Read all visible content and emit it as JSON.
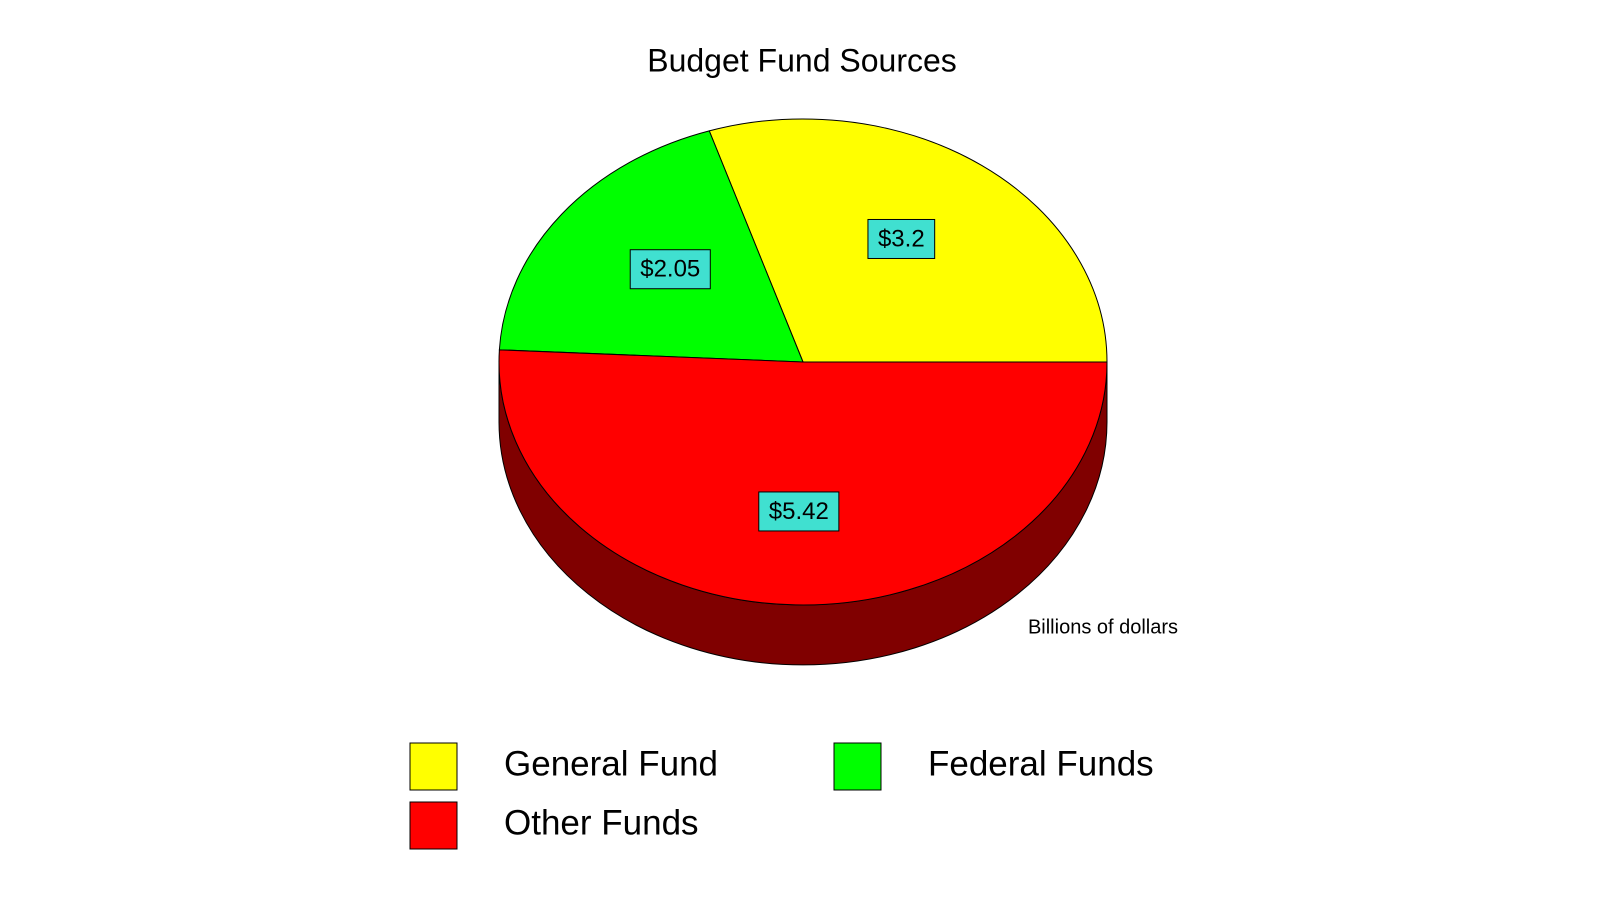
{
  "chart_data": {
    "type": "pie",
    "title": "Budget Fund Sources",
    "annotation": "Billions of dollars",
    "categories": [
      "General Fund",
      "Federal Funds",
      "Other Funds"
    ],
    "values": [
      3.2,
      2.05,
      5.42
    ],
    "value_labels": [
      "$3.2",
      "$2.05",
      "$5.42"
    ],
    "colors": [
      "#ffff00",
      "#00ff00",
      "#ff0000"
    ],
    "side_colors": [
      "#808000",
      "#008000",
      "#800000"
    ],
    "label_box_color": "#40e0d0",
    "legend": "bottom"
  }
}
